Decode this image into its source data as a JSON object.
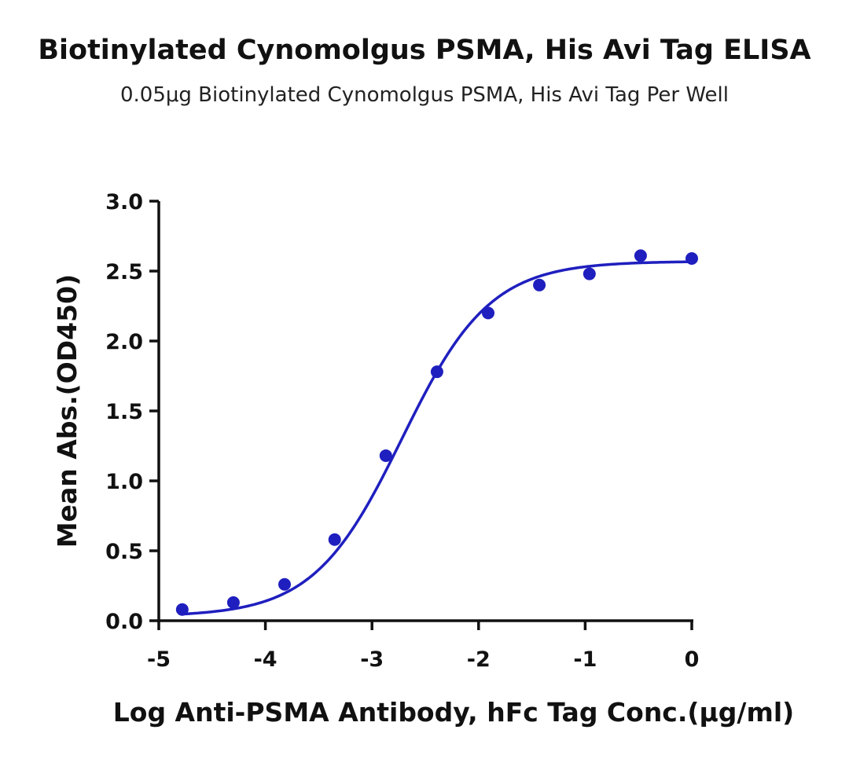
{
  "chart_data": {
    "type": "scatter",
    "title": "Biotinylated Cynomolgus PSMA, His Avi Tag ELISA",
    "subtitle": "0.05μg Biotinylated Cynomolgus PSMA, His Avi Tag Per Well",
    "xlabel": "Log Anti-PSMA Antibody, hFc Tag Conc.(μg/ml)",
    "ylabel": "Mean Abs.(OD450)",
    "xlim": [
      -5,
      0
    ],
    "ylim": [
      0,
      3.0
    ],
    "x_ticks": [
      "-5",
      "-4",
      "-3",
      "-2",
      "-1",
      "0"
    ],
    "y_ticks": [
      "0.0",
      "0.5",
      "1.0",
      "1.5",
      "2.0",
      "2.5",
      "3.0"
    ],
    "grid": false,
    "series": [
      {
        "x": [
          -4.78,
          -4.3,
          -3.82,
          -3.35,
          -2.87,
          -2.39,
          -1.91,
          -1.43,
          -0.96,
          -0.48,
          0.0
        ],
        "y": [
          0.08,
          0.13,
          0.26,
          0.58,
          1.18,
          1.78,
          2.2,
          2.4,
          2.48,
          2.61,
          2.59
        ],
        "color": "#1f1fbf"
      }
    ],
    "fit_curve": {
      "model": "4PL",
      "bottom": 0.03,
      "top": 2.57,
      "log_ec50": -2.72,
      "hill_slope": 1.05,
      "color": "#1f1fbf"
    }
  }
}
